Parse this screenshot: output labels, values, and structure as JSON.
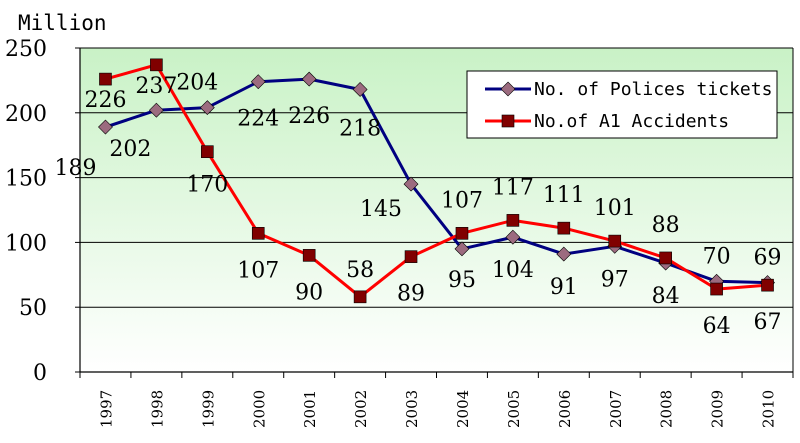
{
  "chart_data": {
    "type": "line",
    "unit_label": "Million",
    "categories": [
      "1997",
      "1998",
      "1999",
      "2000",
      "2001",
      "2002",
      "2003",
      "2004",
      "2005",
      "2006",
      "2007",
      "2008",
      "2009",
      "2010"
    ],
    "ylim": [
      0,
      250
    ],
    "yticks": [
      0,
      50,
      100,
      150,
      200,
      250
    ],
    "grid": true,
    "legend_position": "top-right",
    "series": [
      {
        "name": "No. of Polices tickets",
        "color": "#000080",
        "marker": "diamond",
        "marker_color": "#9c6b7f",
        "values": [
          189,
          202,
          204,
          224,
          226,
          218,
          145,
          95,
          104,
          91,
          97,
          84,
          70,
          69
        ],
        "labels": [
          "189",
          "202",
          "204",
          "224",
          "226",
          "218",
          "145",
          "95",
          "104",
          "91",
          "97",
          "84",
          "70",
          "69"
        ]
      },
      {
        "name": "No.of A1 Accidents",
        "color": "#ff0000",
        "marker": "square",
        "marker_color": "#800000",
        "values": [
          226,
          237,
          170,
          107,
          90,
          58,
          89,
          107,
          117,
          111,
          101,
          88,
          64,
          67
        ],
        "labels": [
          "226",
          "237",
          "170",
          "107",
          "90",
          "58",
          "89",
          "107",
          "117",
          "111",
          "101",
          "88",
          "64",
          "67"
        ]
      }
    ]
  }
}
